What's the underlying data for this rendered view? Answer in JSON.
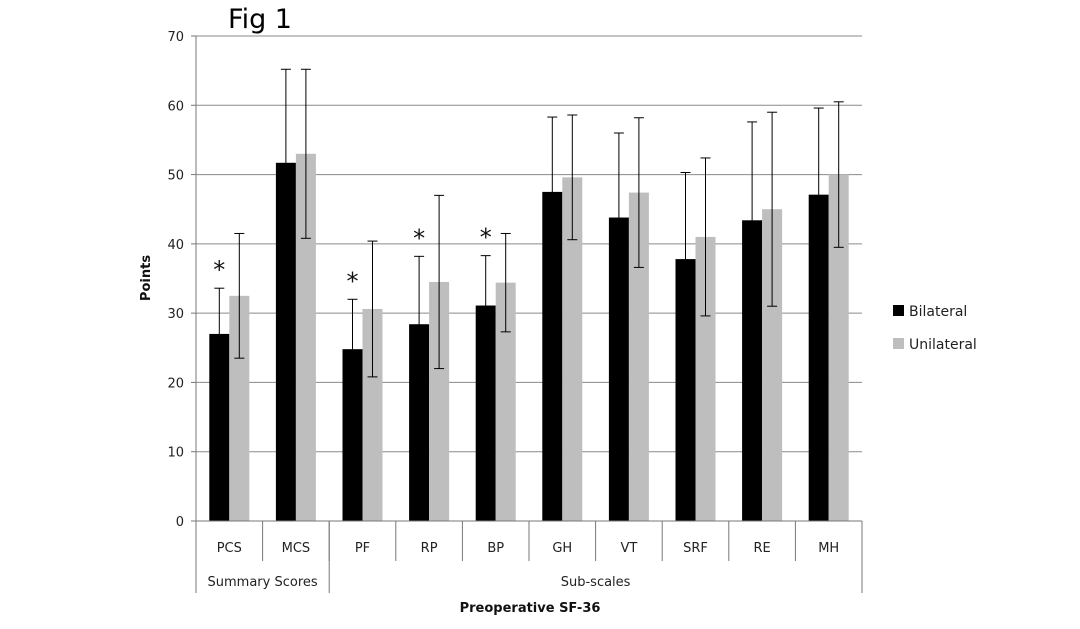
{
  "figure_title": "Fig 1",
  "chart_data": {
    "type": "bar",
    "title": "",
    "xlabel": "Preoperative SF-36",
    "ylabel": "Points",
    "ylim": [
      0,
      70
    ],
    "yticks": [
      0,
      10,
      20,
      30,
      40,
      50,
      60,
      70
    ],
    "grid": "horizontal",
    "legend_position": "right",
    "categories": [
      "PCS",
      "MCS",
      "PF",
      "RP",
      "BP",
      "GH",
      "VT",
      "SRF",
      "RE",
      "MH"
    ],
    "groups": [
      {
        "label": "Summary Scores",
        "categories": [
          "PCS",
          "MCS"
        ]
      },
      {
        "label": "Sub-scales",
        "categories": [
          "PF",
          "RP",
          "BP",
          "GH",
          "VT",
          "SRF",
          "RE",
          "MH"
        ]
      }
    ],
    "series": [
      {
        "name": "Bilateral",
        "color": "#000000",
        "values": [
          27.0,
          51.7,
          24.8,
          28.4,
          31.1,
          47.5,
          43.8,
          37.8,
          43.4,
          47.1
        ],
        "error": [
          6.6,
          13.5,
          7.2,
          9.8,
          7.2,
          10.8,
          12.2,
          12.5,
          14.2,
          12.5
        ]
      },
      {
        "name": "Unilateral",
        "color": "#bebebe",
        "values": [
          32.5,
          53.0,
          30.6,
          34.5,
          34.4,
          49.6,
          47.4,
          41.0,
          45.0,
          50.0
        ],
        "error": [
          9.0,
          12.2,
          9.8,
          12.5,
          7.1,
          9.0,
          10.8,
          11.4,
          14.0,
          10.5
        ]
      }
    ],
    "annotations": [
      {
        "text": "*",
        "category": "PCS"
      },
      {
        "text": "*",
        "category": "PF"
      },
      {
        "text": "*",
        "category": "RP"
      },
      {
        "text": "*",
        "category": "BP"
      }
    ]
  }
}
